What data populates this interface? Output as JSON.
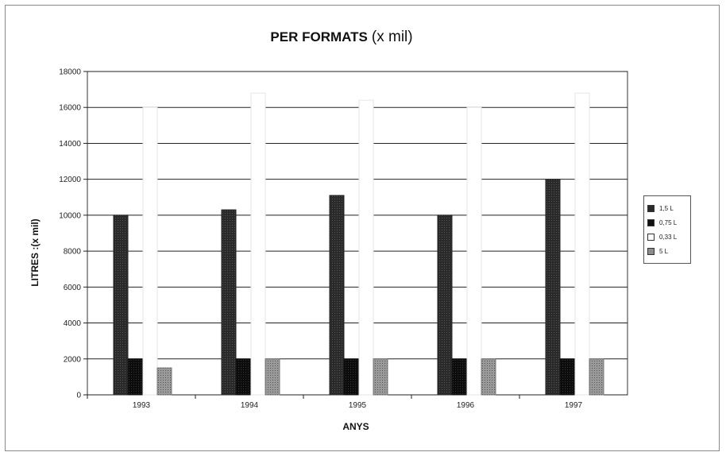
{
  "chart_data": {
    "type": "bar",
    "title_main": "PER FORMATS",
    "title_sub": "(x mil)",
    "xlabel": "ANYS",
    "ylabel": "LITRES :(x mil)",
    "categories": [
      "1993",
      "1994",
      "1995",
      "1996",
      "1997"
    ],
    "ylim": [
      0,
      18000
    ],
    "yticks": [
      0,
      2000,
      4000,
      6000,
      8000,
      10000,
      12000,
      14000,
      16000,
      18000
    ],
    "grid": true,
    "legend_position": "right",
    "series": [
      {
        "name": "1,5 L",
        "values": [
          10000,
          10300,
          11100,
          10000,
          12000
        ],
        "color": "#2b2b2b"
      },
      {
        "name": "0,75 L",
        "values": [
          2000,
          2000,
          2000,
          2000,
          2000
        ],
        "color": "#111111"
      },
      {
        "name": "0,33 L",
        "values": [
          16000,
          16800,
          16400,
          16000,
          16800
        ],
        "color": "#ffffff"
      },
      {
        "name": "5 L",
        "values": [
          1500,
          2000,
          2000,
          2000,
          2000
        ],
        "color": "#8c8c8c"
      }
    ]
  }
}
